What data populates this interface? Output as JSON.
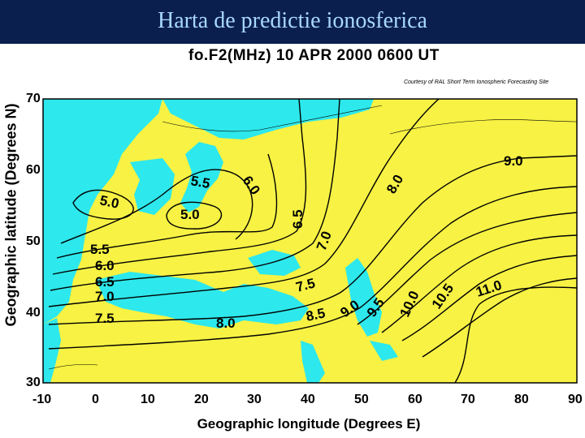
{
  "slide_title": "Harta de predictie ionosferica",
  "map_title": "fo.F2(MHz)    10 APR 2000    0600 UT",
  "credit": "Courtesy of RAL Short Term Ionospheric Forecasting Site",
  "y_axis_label": "Geographic latitude (Degrees N)",
  "x_axis_label": "Geographic longitude (Degrees E)",
  "colors": {
    "sea": "#2de8ec",
    "land": "#f7f243",
    "title_bg": "#0b1f4f",
    "title_text": "#a8d8ff"
  },
  "x_ticks": [
    "-10",
    "0",
    "10",
    "20",
    "30",
    "40",
    "50",
    "60",
    "70",
    "80",
    "90"
  ],
  "y_ticks": [
    "70",
    "60",
    "50",
    "40",
    "30"
  ],
  "contour_labels": [
    "5.0",
    "5.5",
    "6.0",
    "6.5",
    "7.0",
    "7.5",
    "8.0",
    "8.5",
    "9.0",
    "9.5",
    "10.0",
    "10.5",
    "11.0",
    "5.5",
    "6.0",
    "6.5",
    "7.0",
    "7.5",
    "5.0",
    "8.0",
    "9.0"
  ]
}
